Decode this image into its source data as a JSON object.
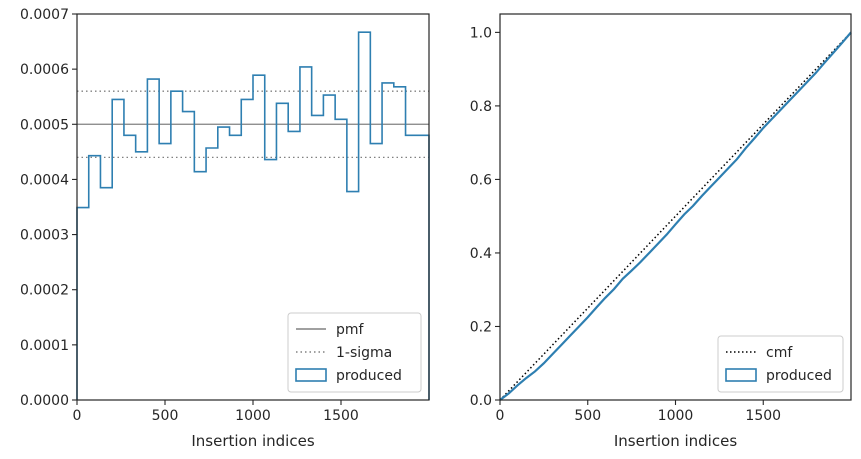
{
  "chart_data": [
    {
      "type": "step",
      "xlabel": "Insertion indices",
      "ylabel": "",
      "xlim": [
        0,
        2000
      ],
      "ylim": [
        0,
        0.0007
      ],
      "xticks": [
        0,
        500,
        1000,
        1500
      ],
      "xtick_labels": [
        "0",
        "500",
        "1000",
        "1500"
      ],
      "yticks": [
        0,
        0.0001,
        0.0002,
        0.0003,
        0.0004,
        0.0005,
        0.0006,
        0.0007
      ],
      "ytick_labels": [
        "0.0000",
        "0.0001",
        "0.0002",
        "0.0003",
        "0.0004",
        "0.0005",
        "0.0006",
        "0.0007"
      ],
      "legend": {
        "location": "lower-right",
        "entries": [
          "pmf",
          "1-sigma",
          "produced"
        ]
      },
      "reference_lines": [
        {
          "name": "pmf",
          "y": 0.0005,
          "style": "solid",
          "color": "#808080"
        },
        {
          "name": "1-sigma",
          "y": 0.00056,
          "style": "dotted",
          "color": "#808080"
        },
        {
          "name": "1-sigma",
          "y": 0.00044,
          "style": "dotted",
          "color": "#808080"
        }
      ],
      "series": [
        {
          "name": "produced",
          "color": "#2e7fb1",
          "bin_edges": [
            0,
            66.7,
            133.3,
            200,
            266.7,
            333.3,
            400,
            466.7,
            533.3,
            600,
            666.7,
            733.3,
            800,
            866.7,
            933.3,
            1000,
            1066.7,
            1133.3,
            1200,
            1266.7,
            1333.3,
            1400,
            1466.7,
            1533.3,
            1600,
            1666.7,
            1733.3,
            1800,
            1866.7,
            1933.3,
            2000
          ],
          "values": [
            0.000349,
            0.000443,
            0.000385,
            0.000545,
            0.00048,
            0.00045,
            0.000582,
            0.000465,
            0.00056,
            0.000523,
            0.000414,
            0.000457,
            0.000495,
            0.00048,
            0.000545,
            0.000589,
            0.000436,
            0.000538,
            0.000487,
            0.000604,
            0.000516,
            0.000553,
            0.000509,
            0.000378,
            0.000667,
            0.000465,
            0.000575,
            0.000568,
            0.00048,
            0.00048
          ]
        }
      ]
    },
    {
      "type": "step",
      "xlabel": "Insertion indices",
      "ylabel": "",
      "xlim": [
        0,
        2000
      ],
      "ylim": [
        0,
        1.05
      ],
      "xticks": [
        0,
        500,
        1000,
        1500
      ],
      "xtick_labels": [
        "0",
        "500",
        "1000",
        "1500"
      ],
      "yticks": [
        0,
        0.2,
        0.4,
        0.6,
        0.8,
        1.0
      ],
      "ytick_labels": [
        "0.0",
        "0.2",
        "0.4",
        "0.6",
        "0.8",
        "1.0"
      ],
      "legend": {
        "location": "lower-right",
        "entries": [
          "cmf",
          "produced"
        ]
      },
      "series": [
        {
          "name": "cmf",
          "color": "#000000",
          "style": "dotted",
          "x": [
            0,
            2000
          ],
          "y": [
            0,
            1.0
          ]
        },
        {
          "name": "produced",
          "color": "#2e7fb1",
          "x": [
            0,
            50,
            100,
            150,
            200,
            250,
            300,
            350,
            400,
            450,
            500,
            550,
            600,
            650,
            700,
            750,
            800,
            850,
            900,
            950,
            1000,
            1050,
            1100,
            1150,
            1200,
            1250,
            1300,
            1350,
            1400,
            1450,
            1500,
            1550,
            1600,
            1650,
            1700,
            1750,
            1800,
            1850,
            1900,
            1950,
            2000
          ],
          "y": [
            0,
            0.018,
            0.04,
            0.06,
            0.078,
            0.1,
            0.125,
            0.15,
            0.175,
            0.2,
            0.225,
            0.252,
            0.278,
            0.302,
            0.33,
            0.352,
            0.375,
            0.4,
            0.425,
            0.45,
            0.478,
            0.505,
            0.528,
            0.555,
            0.58,
            0.605,
            0.63,
            0.655,
            0.685,
            0.712,
            0.74,
            0.765,
            0.79,
            0.815,
            0.84,
            0.865,
            0.89,
            0.918,
            0.945,
            0.972,
            1.0
          ]
        }
      ]
    }
  ]
}
